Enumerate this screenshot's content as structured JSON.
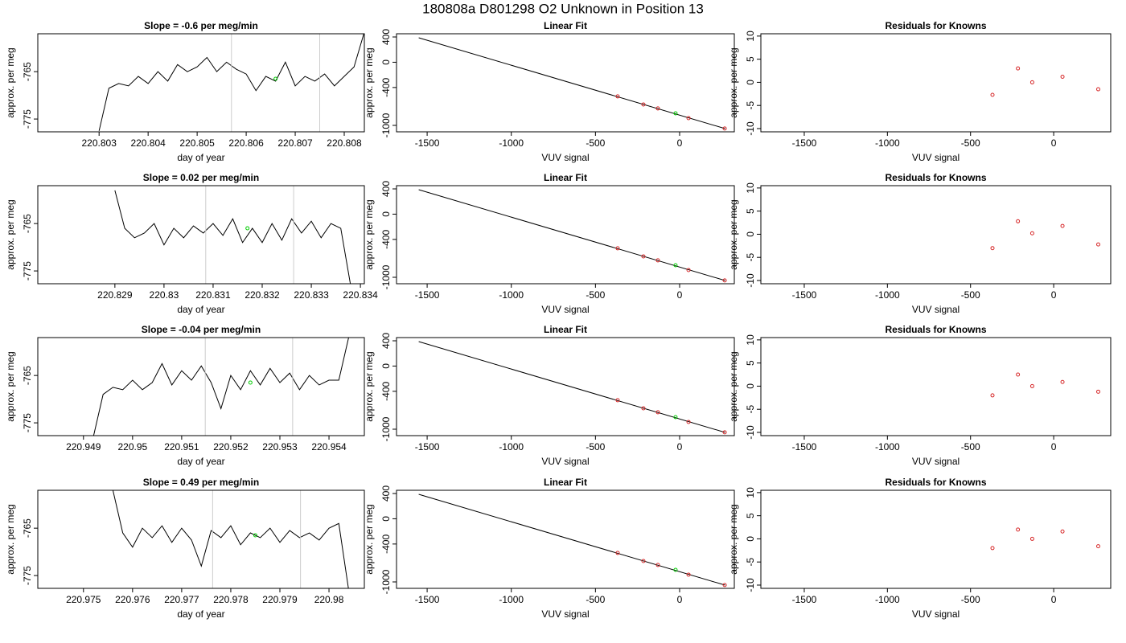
{
  "title": "180808a     D801298   O2 Unknown in Position  13",
  "chart_data": [
    {
      "type": "line",
      "title": "Slope =  -0.6  per meg/min",
      "xlabel": "day of year",
      "ylabel": "approx. per meg",
      "xlim": [
        220.80175,
        220.80841
      ],
      "ylim": [
        -777.7,
        -757
      ],
      "xticks": [
        220.803,
        220.804,
        220.805,
        220.806,
        220.807,
        220.808
      ],
      "yticks": [
        -765,
        -775
      ],
      "vlines": [
        220.8057,
        220.8075
      ],
      "vline_color": "#cccccc",
      "series": [
        {
          "color": "#000000",
          "style": "line",
          "x": [
            220.803,
            220.8032,
            220.8034,
            220.8036,
            220.8038,
            220.804,
            220.8042,
            220.8044,
            220.8046,
            220.8048,
            220.805,
            220.8052,
            220.8054,
            220.8056,
            220.8058,
            220.806,
            220.8062,
            220.8064,
            220.8066,
            220.8068,
            220.807,
            220.8072,
            220.8074,
            220.8076,
            220.8078,
            220.808,
            220.8082,
            220.8084
          ],
          "values": [
            -777.5,
            -768.5,
            -767.5,
            -768,
            -766,
            -767.5,
            -765,
            -767,
            -763.5,
            -765,
            -764,
            -762,
            -765,
            -763,
            -764.5,
            -765.5,
            -769,
            -766,
            -767,
            -763,
            -768,
            -766,
            -767,
            -765.5,
            -768,
            -766,
            -764,
            -757
          ]
        },
        {
          "color": "#00cc00",
          "style": "points",
          "x": [
            220.8066
          ],
          "values": [
            -766.5
          ]
        }
      ]
    },
    {
      "type": "scatter",
      "title": "Linear Fit",
      "xlabel": "VUV signal",
      "ylabel": "approx. per meg",
      "xlim": [
        -1682,
        325
      ],
      "ylim": [
        -1102,
        451
      ],
      "xticks": [
        -1500,
        -1000,
        -500,
        0
      ],
      "yticks": [
        400,
        0,
        -400,
        -1000
      ],
      "series": [
        {
          "color": "#000000",
          "style": "line",
          "x": [
            -1550,
            270
          ],
          "values": [
            387,
            -1051
          ]
        },
        {
          "color": "#d62728",
          "style": "points",
          "x": [
            -368,
            -215,
            -129,
            53,
            268
          ],
          "values": [
            -541,
            -669,
            -732,
            -885,
            -1050
          ]
        },
        {
          "color": "#00cc00",
          "style": "points",
          "x": [
            -24
          ],
          "values": [
            -809
          ]
        }
      ]
    },
    {
      "type": "scatter",
      "title": "Residuals for Knowns",
      "xlabel": "VUV signal",
      "ylabel": "approx. per meg",
      "xlim": [
        -1761,
        343
      ],
      "ylim": [
        -10.7,
        10.5
      ],
      "xticks": [
        -1500,
        -1000,
        -500,
        0
      ],
      "yticks": [
        10,
        5,
        0,
        -5,
        -10
      ],
      "series": [
        {
          "color": "#d62728",
          "style": "points",
          "x": [
            -368,
            -215,
            -129,
            53,
            268
          ],
          "values": [
            -2.7,
            3,
            0,
            1.2,
            -1.5
          ]
        }
      ]
    },
    {
      "type": "line",
      "title": "Slope =  0.02  per meg/min",
      "xlabel": "day of year",
      "ylabel": "approx. per meg",
      "xlim": [
        220.82743,
        220.83408
      ],
      "ylim": [
        -777.7,
        -757
      ],
      "xticks": [
        220.829,
        220.83,
        220.831,
        220.832,
        220.833,
        220.834
      ],
      "yticks": [
        -765,
        -775
      ],
      "vlines": [
        220.83085,
        220.83264
      ],
      "vline_color": "#cccccc",
      "series": [
        {
          "color": "#000000",
          "style": "line",
          "x": [
            220.829,
            220.8292,
            220.8294,
            220.8296,
            220.8298,
            220.83,
            220.8302,
            220.8304,
            220.8306,
            220.8308,
            220.831,
            220.8312,
            220.8314,
            220.8316,
            220.8318,
            220.832,
            220.8322,
            220.8324,
            220.8326,
            220.8328,
            220.833,
            220.8332,
            220.8334,
            220.8336,
            220.8338
          ],
          "values": [
            -758,
            -766,
            -768,
            -767,
            -765,
            -769.5,
            -766,
            -768,
            -765.5,
            -767,
            -765,
            -767.5,
            -764,
            -769,
            -766,
            -769,
            -765,
            -768.5,
            -764,
            -767,
            -764.5,
            -768,
            -765,
            -766,
            -778
          ]
        },
        {
          "color": "#00cc00",
          "style": "points",
          "x": [
            220.8317
          ],
          "values": [
            -766
          ]
        }
      ]
    },
    {
      "type": "scatter",
      "title": "Linear Fit",
      "xlabel": "VUV signal",
      "ylabel": "approx. per meg",
      "xlim": [
        -1682,
        325
      ],
      "ylim": [
        -1102,
        451
      ],
      "xticks": [
        -1500,
        -1000,
        -500,
        0
      ],
      "yticks": [
        400,
        0,
        -400,
        -1000
      ],
      "series": [
        {
          "color": "#000000",
          "style": "line",
          "x": [
            -1550,
            270
          ],
          "values": [
            387,
            -1051
          ]
        },
        {
          "color": "#d62728",
          "style": "points",
          "x": [
            -368,
            -215,
            -129,
            53,
            268
          ],
          "values": [
            -541,
            -669,
            -732,
            -885,
            -1050
          ]
        },
        {
          "color": "#00cc00",
          "style": "points",
          "x": [
            -24
          ],
          "values": [
            -809
          ]
        }
      ]
    },
    {
      "type": "scatter",
      "title": "Residuals for Knowns",
      "xlabel": "VUV signal",
      "ylabel": "approx. per meg",
      "xlim": [
        -1761,
        343
      ],
      "ylim": [
        -10.7,
        10.5
      ],
      "xticks": [
        -1500,
        -1000,
        -500,
        0
      ],
      "yticks": [
        10,
        5,
        0,
        -5,
        -10
      ],
      "series": [
        {
          "color": "#d62728",
          "style": "points",
          "x": [
            -368,
            -215,
            -129,
            53,
            268
          ],
          "values": [
            -3,
            2.8,
            0.2,
            1.8,
            -2.2
          ]
        }
      ]
    },
    {
      "type": "line",
      "title": "Slope =  -0.04  per meg/min",
      "xlabel": "day of year",
      "ylabel": "approx. per meg",
      "xlim": [
        220.94807,
        220.95472
      ],
      "ylim": [
        -777.7,
        -757
      ],
      "xticks": [
        220.949,
        220.95,
        220.951,
        220.952,
        220.953,
        220.954
      ],
      "yticks": [
        -765,
        -775
      ],
      "vlines": [
        220.95148,
        220.95326
      ],
      "vline_color": "#cccccc",
      "series": [
        {
          "color": "#000000",
          "style": "line",
          "x": [
            220.9492,
            220.9494,
            220.9496,
            220.9498,
            220.95,
            220.9502,
            220.9504,
            220.9506,
            220.9508,
            220.951,
            220.9512,
            220.9514,
            220.9516,
            220.9518,
            220.952,
            220.9522,
            220.9524,
            220.9526,
            220.9528,
            220.953,
            220.9532,
            220.9534,
            220.9536,
            220.9538,
            220.954,
            220.9542,
            220.9544
          ],
          "values": [
            -778,
            -769,
            -767.5,
            -768,
            -766,
            -768,
            -766.5,
            -762.5,
            -767,
            -764,
            -766,
            -763,
            -766.5,
            -772,
            -765,
            -768,
            -764,
            -767,
            -763.5,
            -766.5,
            -764.5,
            -768,
            -765,
            -767,
            -766,
            -766,
            -757
          ]
        },
        {
          "color": "#00cc00",
          "style": "points",
          "x": [
            220.9524
          ],
          "values": [
            -766.5
          ]
        }
      ]
    },
    {
      "type": "scatter",
      "title": "Linear Fit",
      "xlabel": "VUV signal",
      "ylabel": "approx. per meg",
      "xlim": [
        -1682,
        325
      ],
      "ylim": [
        -1102,
        451
      ],
      "xticks": [
        -1500,
        -1000,
        -500,
        0
      ],
      "yticks": [
        400,
        0,
        -400,
        -1000
      ],
      "series": [
        {
          "color": "#000000",
          "style": "line",
          "x": [
            -1550,
            270
          ],
          "values": [
            387,
            -1051
          ]
        },
        {
          "color": "#d62728",
          "style": "points",
          "x": [
            -368,
            -215,
            -129,
            53,
            268
          ],
          "values": [
            -541,
            -669,
            -732,
            -885,
            -1050
          ]
        },
        {
          "color": "#00cc00",
          "style": "points",
          "x": [
            -24
          ],
          "values": [
            -809
          ]
        }
      ]
    },
    {
      "type": "scatter",
      "title": "Residuals for Knowns",
      "xlabel": "VUV signal",
      "ylabel": "approx. per meg",
      "xlim": [
        -1761,
        343
      ],
      "ylim": [
        -10.7,
        10.5
      ],
      "xticks": [
        -1500,
        -1000,
        -500,
        0
      ],
      "yticks": [
        10,
        5,
        0,
        -5,
        -10
      ],
      "series": [
        {
          "color": "#d62728",
          "style": "points",
          "x": [
            -368,
            -215,
            -129,
            53,
            268
          ],
          "values": [
            -2,
            2.5,
            0,
            0.9,
            -1.2
          ]
        }
      ]
    },
    {
      "type": "line",
      "title": "Slope =  0.49  per meg/min",
      "xlabel": "day of year",
      "ylabel": "approx. per meg",
      "xlim": [
        220.97407,
        220.98072
      ],
      "ylim": [
        -777.7,
        -757
      ],
      "xticks": [
        220.975,
        220.976,
        220.977,
        220.978,
        220.979,
        220.98
      ],
      "yticks": [
        -765,
        -775
      ],
      "vlines": [
        220.97763,
        220.97942
      ],
      "vline_color": "#cccccc",
      "series": [
        {
          "color": "#000000",
          "style": "line",
          "x": [
            220.9756,
            220.9758,
            220.976,
            220.9762,
            220.9764,
            220.9766,
            220.9768,
            220.977,
            220.9772,
            220.9774,
            220.9776,
            220.9778,
            220.978,
            220.9782,
            220.9784,
            220.9786,
            220.9788,
            220.979,
            220.9792,
            220.9794,
            220.9796,
            220.9798,
            220.98,
            220.9802,
            220.9804
          ],
          "values": [
            -757,
            -766,
            -769,
            -765,
            -767,
            -764.5,
            -768,
            -765,
            -767.5,
            -773,
            -765.5,
            -767,
            -764.5,
            -768.5,
            -766,
            -767,
            -765,
            -768,
            -765.5,
            -767,
            -766,
            -767.5,
            -765,
            -764,
            -778
          ]
        },
        {
          "color": "#00cc00",
          "style": "points",
          "x": [
            220.9785
          ],
          "values": [
            -766.5
          ]
        }
      ]
    },
    {
      "type": "scatter",
      "title": "Linear Fit",
      "xlabel": "VUV signal",
      "ylabel": "approx. per meg",
      "xlim": [
        -1682,
        325
      ],
      "ylim": [
        -1102,
        451
      ],
      "xticks": [
        -1500,
        -1000,
        -500,
        0
      ],
      "yticks": [
        400,
        0,
        -400,
        -1000
      ],
      "series": [
        {
          "color": "#000000",
          "style": "line",
          "x": [
            -1550,
            270
          ],
          "values": [
            387,
            -1051
          ]
        },
        {
          "color": "#d62728",
          "style": "points",
          "x": [
            -368,
            -215,
            -129,
            53,
            268
          ],
          "values": [
            -541,
            -669,
            -732,
            -885,
            -1050
          ]
        },
        {
          "color": "#00cc00",
          "style": "points",
          "x": [
            -24
          ],
          "values": [
            -809
          ]
        }
      ]
    },
    {
      "type": "scatter",
      "title": "Residuals for Knowns",
      "xlabel": "VUV signal",
      "ylabel": "approx. per meg",
      "xlim": [
        -1761,
        343
      ],
      "ylim": [
        -10.7,
        10.5
      ],
      "xticks": [
        -1500,
        -1000,
        -500,
        0
      ],
      "yticks": [
        10,
        5,
        0,
        -5,
        -10
      ],
      "series": [
        {
          "color": "#d62728",
          "style": "points",
          "x": [
            -368,
            -215,
            -129,
            53,
            268
          ],
          "values": [
            -2,
            2,
            0,
            1.6,
            -1.6
          ]
        }
      ]
    }
  ]
}
